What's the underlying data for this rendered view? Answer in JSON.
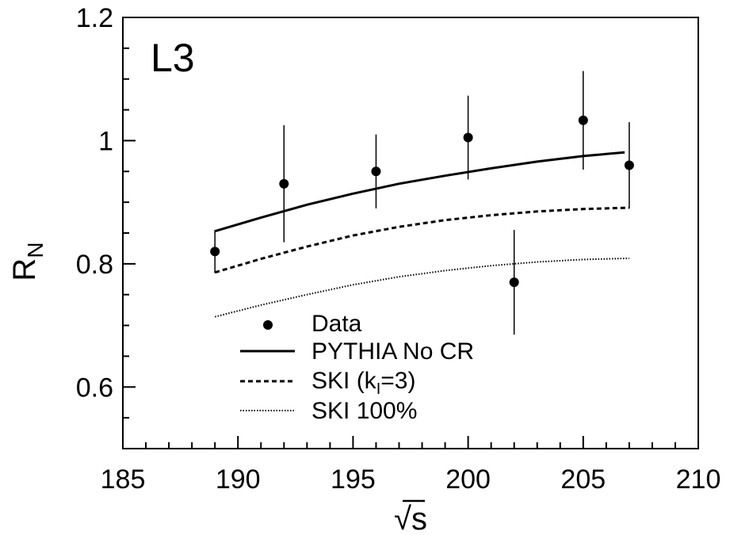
{
  "chart_data": {
    "type": "scatter",
    "annotation": "L3",
    "xlabel": "√s",
    "ylabel": "R",
    "ylabel_subscript": "N",
    "xlim": [
      185,
      210
    ],
    "ylim": [
      0.5,
      1.2
    ],
    "x_ticks": [
      185,
      190,
      195,
      200,
      205,
      210
    ],
    "x_tick_labels": [
      "185",
      "190",
      "195",
      "200",
      "205",
      "210"
    ],
    "y_ticks": [
      0.6,
      0.8,
      1.0,
      1.2
    ],
    "y_tick_labels": [
      "0.6",
      "0.8",
      "1",
      "1.2"
    ],
    "legend_placement": "lower-left",
    "series": [
      {
        "name": "Data",
        "kind": "points",
        "x": [
          189,
          192,
          196,
          200,
          202,
          205,
          207
        ],
        "y": [
          0.82,
          0.93,
          0.95,
          1.005,
          0.77,
          1.033,
          0.96
        ],
        "yerr_low": [
          0.035,
          0.095,
          0.06,
          0.068,
          0.085,
          0.08,
          0.07
        ],
        "yerr_high": [
          0.035,
          0.095,
          0.06,
          0.068,
          0.085,
          0.08,
          0.07
        ]
      },
      {
        "name": "PYTHIA No CR",
        "kind": "line",
        "style": "solid",
        "x": [
          189,
          191,
          193,
          195,
          197,
          199,
          201,
          203,
          205,
          206.8
        ],
        "y": [
          0.853,
          0.875,
          0.896,
          0.914,
          0.93,
          0.943,
          0.955,
          0.966,
          0.975,
          0.981
        ]
      },
      {
        "name": "SKI (k",
        "name_subscript": "I",
        "name_suffix": "=3)",
        "kind": "line",
        "style": "dashed",
        "x": [
          189,
          191,
          193,
          195,
          197,
          199,
          201,
          203,
          205,
          207
        ],
        "y": [
          0.786,
          0.808,
          0.828,
          0.846,
          0.86,
          0.871,
          0.879,
          0.885,
          0.889,
          0.891
        ]
      },
      {
        "name": "SKI 100%",
        "kind": "line",
        "style": "dotted",
        "x": [
          189,
          191,
          193,
          195,
          197,
          199,
          201,
          203,
          205,
          207
        ],
        "y": [
          0.714,
          0.733,
          0.75,
          0.766,
          0.779,
          0.789,
          0.797,
          0.803,
          0.807,
          0.809
        ]
      }
    ]
  }
}
